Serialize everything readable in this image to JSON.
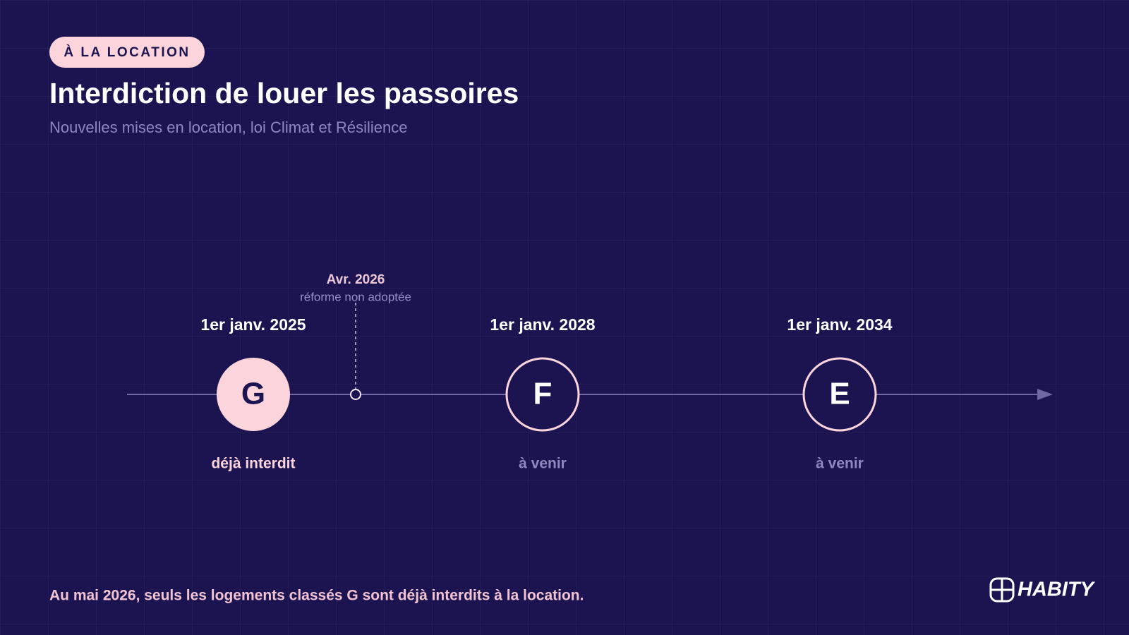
{
  "badge": "À LA LOCATION",
  "title": "Interdiction de louer les passoires",
  "subtitle": "Nouvelles mises en location, loi Climat et Résilience",
  "timeline": {
    "events": [
      {
        "date": "1er janv. 2025",
        "letter": "G",
        "status": "déjà interdit"
      },
      {
        "date": "1er janv. 2028",
        "letter": "F",
        "status": "à venir"
      },
      {
        "date": "1er janv. 2034",
        "letter": "E",
        "status": "à venir"
      }
    ],
    "marker": {
      "date": "Avr. 2026",
      "note": "réforme non adoptée"
    }
  },
  "footer": "Au mai 2026, seuls les logements classés G sont déjà interdits à la location.",
  "logo": "HABITY"
}
